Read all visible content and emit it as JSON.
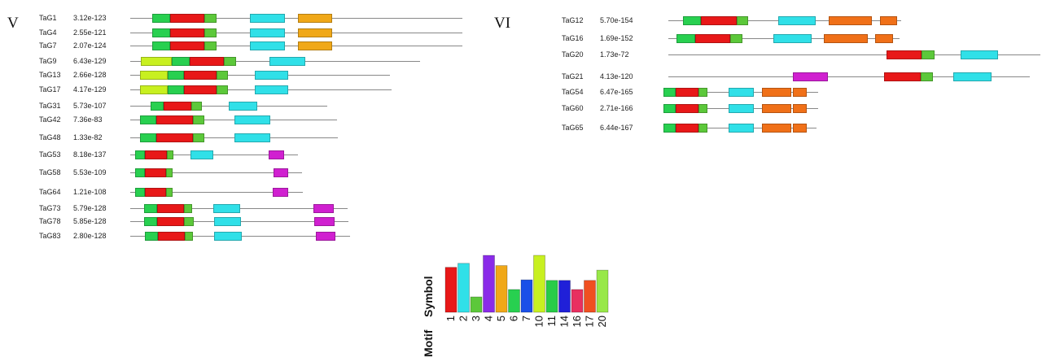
{
  "motif_colors": {
    "1": "#e81818",
    "2": "#30e0e8",
    "3": "#5cc83a",
    "4": "#8a2be8",
    "5": "#f0a818",
    "6": "#28d050",
    "7": "#1a4fe8",
    "10": "#c8f020",
    "11": "#28cc48",
    "14": "#2020d8",
    "16": "#e83060",
    "17": "#f05020",
    "20": "#a0e040",
    "20b": "#98e848",
    "m": "#d020d0",
    "o": "#f07018"
  },
  "panels": [
    {
      "label": "V",
      "genes": [
        {
          "name": "TaG1",
          "evalue": "3.12e-123",
          "motifs": [
            "6",
            "1",
            "3",
            "2",
            "5"
          ]
        },
        {
          "name": "TaG4",
          "evalue": "2.55e-121",
          "motifs": [
            "6",
            "1",
            "3",
            "2",
            "5"
          ]
        },
        {
          "name": "TaG7",
          "evalue": "2.07e-124",
          "motifs": [
            "6",
            "1",
            "3",
            "2",
            "5"
          ]
        },
        {
          "name": "TaG9",
          "evalue": "6.43e-129",
          "motifs": [
            "10",
            "6",
            "1",
            "3",
            "2"
          ]
        },
        {
          "name": "TaG13",
          "evalue": "2.66e-128",
          "motifs": [
            "10",
            "6",
            "1",
            "3",
            "2"
          ]
        },
        {
          "name": "TaG17",
          "evalue": "4.17e-129",
          "motifs": [
            "10",
            "6",
            "1",
            "3",
            "2"
          ]
        },
        {
          "name": "TaG31",
          "evalue": "5.73e-107",
          "motifs": [
            "6",
            "1",
            "3",
            "2"
          ]
        },
        {
          "name": "TaG42",
          "evalue": "7.36e-83",
          "motifs": [
            "6",
            "1",
            "3",
            "2"
          ]
        },
        {
          "name": "TaG48",
          "evalue": "1.33e-82",
          "motifs": [
            "6",
            "1",
            "3",
            "2"
          ]
        },
        {
          "name": "TaG53",
          "evalue": "8.18e-137",
          "motifs": [
            "6",
            "1",
            "3",
            "2",
            "m"
          ]
        },
        {
          "name": "TaG58",
          "evalue": "5.53e-109",
          "motifs": [
            "6",
            "1",
            "3",
            "m"
          ]
        },
        {
          "name": "TaG64",
          "evalue": "1.21e-108",
          "motifs": [
            "6",
            "1",
            "3",
            "m"
          ]
        },
        {
          "name": "TaG73",
          "evalue": "5.79e-128",
          "motifs": [
            "6",
            "1",
            "3",
            "2",
            "m"
          ]
        },
        {
          "name": "TaG78",
          "evalue": "5.85e-128",
          "motifs": [
            "6",
            "1",
            "3",
            "2",
            "m"
          ]
        },
        {
          "name": "TaG83",
          "evalue": "2.80e-128",
          "motifs": [
            "6",
            "1",
            "3",
            "2",
            "m"
          ]
        }
      ]
    },
    {
      "label": "VI",
      "genes": [
        {
          "name": "TaG12",
          "evalue": "5.70e-154",
          "motifs": [
            "6",
            "1",
            "3",
            "2",
            "o",
            "o"
          ]
        },
        {
          "name": "TaG16",
          "evalue": "1.69e-152",
          "motifs": [
            "6",
            "1",
            "3",
            "2",
            "o",
            "o"
          ]
        },
        {
          "name": "TaG20",
          "evalue": "1.73e-72",
          "motifs": [
            "1",
            "3",
            "2"
          ]
        },
        {
          "name": "TaG21",
          "evalue": "4.13e-120",
          "motifs": [
            "m",
            "1",
            "3",
            "2"
          ]
        },
        {
          "name": "TaG54",
          "evalue": "6.47e-165",
          "motifs": [
            "6",
            "1",
            "3",
            "2",
            "o",
            "o"
          ]
        },
        {
          "name": "TaG60",
          "evalue": "2.71e-166",
          "motifs": [
            "6",
            "1",
            "3",
            "2",
            "o",
            "o"
          ]
        },
        {
          "name": "TaG65",
          "evalue": "6.44e-167",
          "motifs": [
            "6",
            "1",
            "3",
            "2",
            "o",
            "o"
          ]
        }
      ]
    }
  ],
  "legend": {
    "symbol_label": "Symbol",
    "motif_label": "Motif",
    "motifs": [
      {
        "id": "1",
        "height": 0.79,
        "color": "#e81818"
      },
      {
        "id": "2",
        "height": 0.86,
        "color": "#30e0e8"
      },
      {
        "id": "3",
        "height": 0.27,
        "color": "#5cc83a"
      },
      {
        "id": "4",
        "height": 1.0,
        "color": "#8a2be8"
      },
      {
        "id": "5",
        "height": 0.82,
        "color": "#f0a818"
      },
      {
        "id": "6",
        "height": 0.4,
        "color": "#28d050"
      },
      {
        "id": "7",
        "height": 0.57,
        "color": "#1a4fe8"
      },
      {
        "id": "10",
        "height": 1.0,
        "color": "#c8f020"
      },
      {
        "id": "11",
        "height": 0.56,
        "color": "#28cc48"
      },
      {
        "id": "14",
        "height": 0.56,
        "color": "#2020d8"
      },
      {
        "id": "16",
        "height": 0.4,
        "color": "#e83060"
      },
      {
        "id": "17",
        "height": 0.56,
        "color": "#f05020"
      },
      {
        "id": "20",
        "height": 0.74,
        "color": "#98e848"
      }
    ]
  }
}
